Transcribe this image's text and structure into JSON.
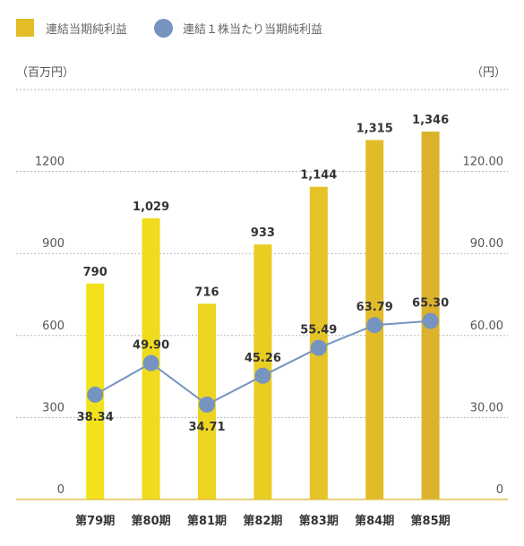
{
  "legend": {
    "bar_label": "連結当期純利益",
    "line_label": "連結１株当たり当期純利益"
  },
  "axis": {
    "left_unit": "（百万円）",
    "right_unit": "（円）"
  },
  "chart_data": {
    "type": "bar+line",
    "categories": [
      "第79期",
      "第80期",
      "第81期",
      "第82期",
      "第83期",
      "第84期",
      "第85期"
    ],
    "series": [
      {
        "name": "連結当期純利益",
        "type": "bar",
        "axis": "left",
        "values": [
          790,
          1029,
          716,
          933,
          1144,
          1315,
          1346
        ],
        "labels": [
          "790",
          "1,029",
          "716",
          "933",
          "1,144",
          "1,315",
          "1,346"
        ],
        "colors": [
          "#f2e21b",
          "#f0db1d",
          "#edd420",
          "#eacd22",
          "#e5c326",
          "#e2bb29",
          "#dcb22d"
        ]
      },
      {
        "name": "連結１株当たり当期純利益",
        "type": "line",
        "axis": "right",
        "values": [
          38.34,
          49.9,
          34.71,
          45.26,
          55.49,
          63.79,
          65.3
        ],
        "labels": [
          "38.34",
          "49.90",
          "34.71",
          "45.26",
          "55.49",
          "63.79",
          "65.30"
        ],
        "color": "#7594c0"
      }
    ],
    "y_left": {
      "ticks": [
        0,
        300,
        600,
        900,
        1200
      ],
      "tick_labels": [
        "0",
        "300",
        "600",
        "900",
        "1200"
      ],
      "range": [
        0,
        1500
      ]
    },
    "y_right": {
      "ticks": [
        0,
        30,
        60,
        90,
        120
      ],
      "tick_labels": [
        "0",
        "30.00",
        "60.00",
        "90.00",
        "120.00"
      ],
      "range": [
        0,
        150
      ]
    },
    "grid": true,
    "legend_position": "top-left"
  }
}
